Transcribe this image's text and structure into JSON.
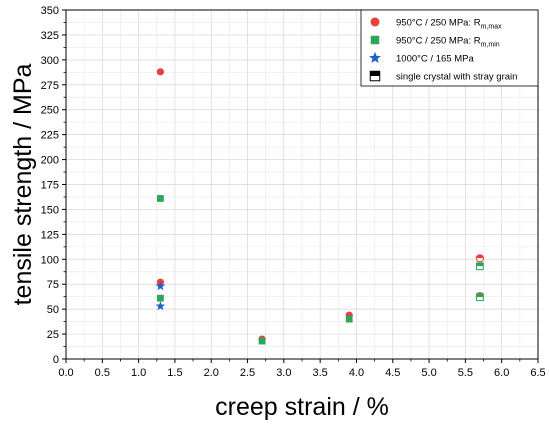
{
  "chart_data": {
    "type": "scatter",
    "xlabel": "creep strain / %",
    "ylabel": "tensile strength / MPa",
    "xlim": [
      0.0,
      6.5
    ],
    "ylim": [
      0,
      350
    ],
    "x_ticks": [
      "0.0",
      "0.5",
      "1.0",
      "1.5",
      "2.0",
      "2.5",
      "3.0",
      "3.5",
      "4.0",
      "4.5",
      "5.0",
      "5.5",
      "6.0",
      "6.5"
    ],
    "y_ticks": [
      "0",
      "25",
      "50",
      "75",
      "100",
      "125",
      "150",
      "175",
      "200",
      "225",
      "250",
      "275",
      "300",
      "325",
      "350"
    ],
    "grid": true,
    "legend_position": "top-right",
    "series": [
      {
        "name": "950°C / 250 MPa: R",
        "name_subscript": "m,max",
        "marker": "circle",
        "color": "#e8403f",
        "points": [
          {
            "x": 1.3,
            "y": 288
          },
          {
            "x": 1.3,
            "y": 77
          },
          {
            "x": 2.7,
            "y": 20
          },
          {
            "x": 3.9,
            "y": 44
          },
          {
            "x": 5.7,
            "y": 101,
            "stray_grain": true
          },
          {
            "x": 5.7,
            "y": 63,
            "stray_grain": true
          }
        ]
      },
      {
        "name": "950°C / 250 MPa: R",
        "name_subscript": "m,min",
        "marker": "square",
        "color": "#2ea55a",
        "points": [
          {
            "x": 1.3,
            "y": 161
          },
          {
            "x": 1.3,
            "y": 61
          },
          {
            "x": 2.7,
            "y": 18
          },
          {
            "x": 3.9,
            "y": 40
          },
          {
            "x": 5.7,
            "y": 93,
            "stray_grain": true
          },
          {
            "x": 5.7,
            "y": 62,
            "stray_grain": true
          }
        ]
      },
      {
        "name": "1000°C / 165 MPa",
        "marker": "star",
        "color": "#1f5fc8",
        "points": [
          {
            "x": 1.3,
            "y": 73
          },
          {
            "x": 1.3,
            "y": 53
          }
        ]
      }
    ],
    "legend_extra": {
      "label": "single crystal with stray grain",
      "marker": "half-filled-square",
      "color": "#000000"
    }
  }
}
